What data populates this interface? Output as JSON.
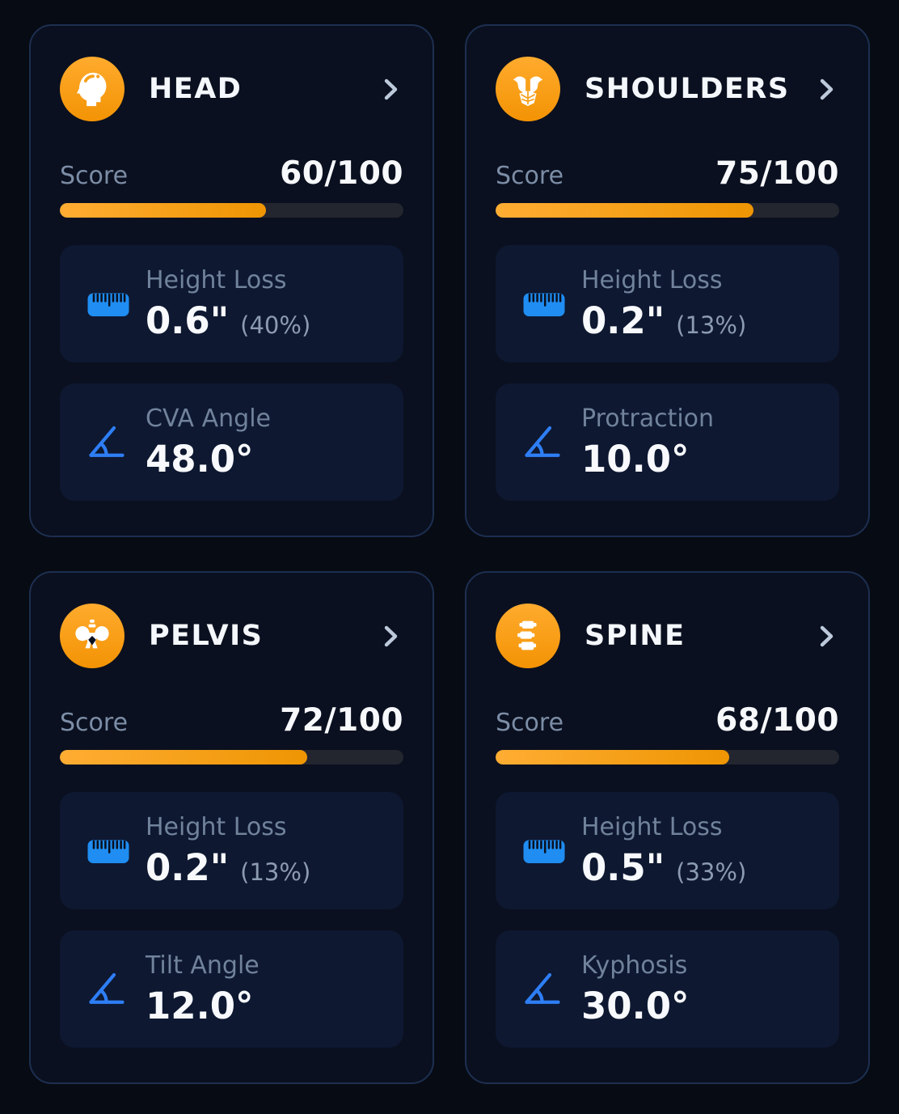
{
  "colors": {
    "page_bg": "#070b14",
    "card_bg": "#0a101f",
    "card_border": "#1d2f50",
    "tile_bg": "#0e1831",
    "accent_orange": "#f7a019",
    "progress_track": "#23262f",
    "ruler_blue": "#1f8df2",
    "angle_blue": "#2e7ef5",
    "label_slate": "#7c8da6",
    "value_white": "#f6f8fb",
    "chevron_gray": "#bcc9da"
  },
  "cards": [
    {
      "title": "HEAD",
      "icon": "head-icon",
      "score_label": "Score",
      "score_value": "60/100",
      "score_pct": 60,
      "metrics": [
        {
          "icon": "ruler-icon",
          "label": "Height Loss",
          "value": "0.6\"",
          "suffix": "(40%)"
        },
        {
          "icon": "angle-icon",
          "label": "CVA Angle",
          "value": "48.0°",
          "suffix": ""
        }
      ]
    },
    {
      "title": "SHOULDERS",
      "icon": "shoulders-icon",
      "score_label": "Score",
      "score_value": "75/100",
      "score_pct": 75,
      "metrics": [
        {
          "icon": "ruler-icon",
          "label": "Height Loss",
          "value": "0.2\"",
          "suffix": "(13%)"
        },
        {
          "icon": "angle-icon",
          "label": "Protraction",
          "value": "10.0°",
          "suffix": ""
        }
      ]
    },
    {
      "title": "PELVIS",
      "icon": "pelvis-icon",
      "score_label": "Score",
      "score_value": "72/100",
      "score_pct": 72,
      "metrics": [
        {
          "icon": "ruler-icon",
          "label": "Height Loss",
          "value": "0.2\"",
          "suffix": "(13%)"
        },
        {
          "icon": "angle-icon",
          "label": "Tilt Angle",
          "value": "12.0°",
          "suffix": ""
        }
      ]
    },
    {
      "title": "SPINE",
      "icon": "spine-icon",
      "score_label": "Score",
      "score_value": "68/100",
      "score_pct": 68,
      "metrics": [
        {
          "icon": "ruler-icon",
          "label": "Height Loss",
          "value": "0.5\"",
          "suffix": "(33%)"
        },
        {
          "icon": "angle-icon",
          "label": "Kyphosis",
          "value": "30.0°",
          "suffix": ""
        }
      ]
    }
  ]
}
